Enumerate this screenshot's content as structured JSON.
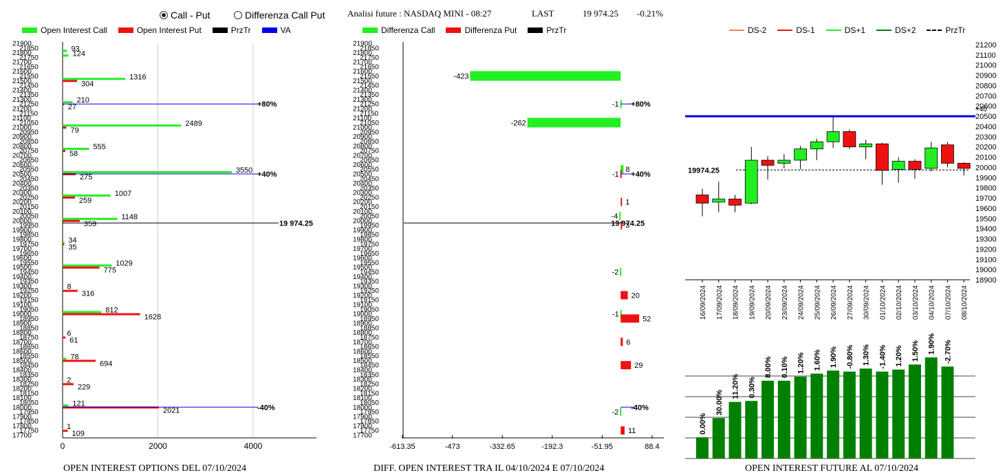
{
  "header": {
    "radio_call_put": "Call - Put",
    "radio_diff": "Differenza Call Put",
    "selected": "call_put",
    "title": "Analisi future : NASDAQ MINI - 08:27",
    "last_label": "LAST",
    "last_value": "19 974.25",
    "last_change": "-0.21%"
  },
  "colors": {
    "call": "#22ee22",
    "put": "#ee1111",
    "przt": "#000000",
    "va": "#0000ee",
    "volume_bar": "#008000"
  },
  "legend_left": [
    "Open Interest Call",
    "Open Interest Put",
    "PrzTr",
    "VA"
  ],
  "legend_mid": [
    "Differenza Call",
    "Differenza Put",
    "PrzTr"
  ],
  "legend_right": [
    "DS-2",
    "DS-1",
    "DS+1",
    "DS+2",
    "PrzTr"
  ],
  "captions": {
    "left": "OPEN INTEREST OPTIONS DEL 07/10/2024",
    "mid": "DIFF. OPEN INTEREST TRA IL 04/10/2024 E 07/10/2024",
    "right": "OPEN INTEREST FUTURE AL 07/10/2024"
  },
  "chart_data": [
    {
      "type": "bar",
      "orientation": "horizontal",
      "title": "OPEN INTEREST OPTIONS DEL 07/10/2024",
      "strike_range": [
        17700,
        21900
      ],
      "strike_step": 50,
      "xticks": [
        0,
        2000,
        4000
      ],
      "xlim": [
        0,
        4600
      ],
      "series": [
        {
          "name": "Open Interest Call",
          "strikes": [
            21800,
            21750,
            21500,
            21250,
            21000,
            20750,
            20500,
            20250,
            20000,
            19750,
            19500,
            19250,
            19000,
            18750,
            18500,
            18250,
            18000,
            17750
          ],
          "values": [
            93,
            124,
            1316,
            210,
            2489,
            555,
            3550,
            1007,
            1148,
            34,
            1029,
            8,
            812,
            6,
            78,
            2,
            121,
            1
          ]
        },
        {
          "name": "Open Interest Put",
          "strikes": [
            21500,
            21250,
            21000,
            20750,
            20500,
            20250,
            20000,
            19750,
            19500,
            19250,
            19000,
            18750,
            18500,
            18250,
            18000,
            17750
          ],
          "values": [
            304,
            27,
            79,
            58,
            275,
            259,
            359,
            35,
            775,
            316,
            1628,
            61,
            694,
            229,
            2021,
            109
          ]
        }
      ],
      "przt": {
        "value": 19974.25,
        "label": "19 974.25"
      },
      "va_levels": [
        {
          "strike": 21250,
          "label": "+80%"
        },
        {
          "strike": 20500,
          "label": "+40%"
        },
        {
          "strike": 18000,
          "label": "-40%"
        }
      ]
    },
    {
      "type": "bar",
      "orientation": "horizontal",
      "title": "DIFF. OPEN INTEREST TRA IL 04/10/2024 E 07/10/2024",
      "strike_range": [
        17700,
        21900
      ],
      "xticks": [
        -613.35,
        -473,
        -332.65,
        -192.3,
        -51.95,
        88.4
      ],
      "xlim": [
        -613.35,
        88.4
      ],
      "series": [
        {
          "name": "Differenza Call",
          "strikes": [
            21550,
            21250,
            21050,
            20550,
            20050,
            19450,
            19000,
            17950
          ],
          "values": [
            -423,
            -1,
            -262,
            8,
            -4,
            -2,
            -1,
            -2
          ]
        },
        {
          "name": "Differenza Put",
          "strikes": [
            20500,
            20200,
            19950,
            19200,
            18950,
            18700,
            18450,
            17750
          ],
          "values": [
            -1,
            1,
            3,
            20,
            52,
            6,
            29,
            11
          ]
        }
      ],
      "przt": {
        "value": 19974.25,
        "label": "19 974.25"
      },
      "va_levels": [
        {
          "strike": 21250,
          "label": "+80%"
        },
        {
          "strike": 20500,
          "label": "+40%"
        },
        {
          "strike": 18000,
          "label": "-40%"
        }
      ]
    },
    {
      "type": "candlestick",
      "title": "OPEN INTEREST FUTURE AL 07/10/2024",
      "ylim": [
        18900,
        21200
      ],
      "ytick_step": 100,
      "dates": [
        "16/09/2024",
        "17/09/2024",
        "18/09/2024",
        "19/09/2024",
        "20/09/2024",
        "23/09/2024",
        "24/09/2024",
        "25/09/2024",
        "26/09/2024",
        "27/09/2024",
        "30/09/2024",
        "01/10/2024",
        "02/10/2024",
        "03/10/2024",
        "04/10/2024",
        "07/10/2024",
        "08/10/2024"
      ],
      "candles": [
        {
          "o": 19730,
          "h": 19790,
          "l": 19520,
          "c": 19650
        },
        {
          "o": 19660,
          "h": 19860,
          "l": 19560,
          "c": 19690
        },
        {
          "o": 19690,
          "h": 19730,
          "l": 19560,
          "c": 19630
        },
        {
          "o": 19650,
          "h": 20200,
          "l": 19640,
          "c": 20070
        },
        {
          "o": 20070,
          "h": 20110,
          "l": 19880,
          "c": 20020
        },
        {
          "o": 20040,
          "h": 20130,
          "l": 19990,
          "c": 20070
        },
        {
          "o": 20070,
          "h": 20210,
          "l": 19980,
          "c": 20180
        },
        {
          "o": 20180,
          "h": 20280,
          "l": 20070,
          "c": 20250
        },
        {
          "o": 20250,
          "h": 20500,
          "l": 20190,
          "c": 20350
        },
        {
          "o": 20350,
          "h": 20370,
          "l": 20180,
          "c": 20200
        },
        {
          "o": 20200,
          "h": 20270,
          "l": 20080,
          "c": 20230
        },
        {
          "o": 20230,
          "h": 20240,
          "l": 19830,
          "c": 19970
        },
        {
          "o": 19980,
          "h": 20100,
          "l": 19850,
          "c": 20060
        },
        {
          "o": 20060,
          "h": 20080,
          "l": 19890,
          "c": 19980
        },
        {
          "o": 19990,
          "h": 20250,
          "l": 19960,
          "c": 20190
        },
        {
          "o": 20220,
          "h": 20250,
          "l": 20000,
          "c": 20040
        },
        {
          "o": 20040,
          "h": 20050,
          "l": 19920,
          "c": 19990
        }
      ],
      "przt": {
        "value": 19974.25,
        "label": "19974.25"
      },
      "va_level": {
        "value": 20500,
        "label": "+40"
      }
    },
    {
      "type": "bar",
      "title": "OPEN INTEREST FUTURE AL 07/10/2024",
      "values_rel": [
        0.21,
        0.4,
        0.56,
        0.57,
        0.77,
        0.77,
        0.81,
        0.84,
        0.87,
        0.86,
        0.89,
        0.86,
        0.88,
        0.93,
        1.0,
        0.91
      ],
      "labels": [
        "0.00%",
        "30.00%",
        "11.20%",
        "0.30%",
        "8.00%",
        "0.10%",
        "1.20%",
        "1.60%",
        "1.90%",
        "-0.80%",
        "1.30%",
        "-1.40%",
        "1.20%",
        "1.50%",
        "1.90%",
        "-2.70%"
      ]
    }
  ]
}
